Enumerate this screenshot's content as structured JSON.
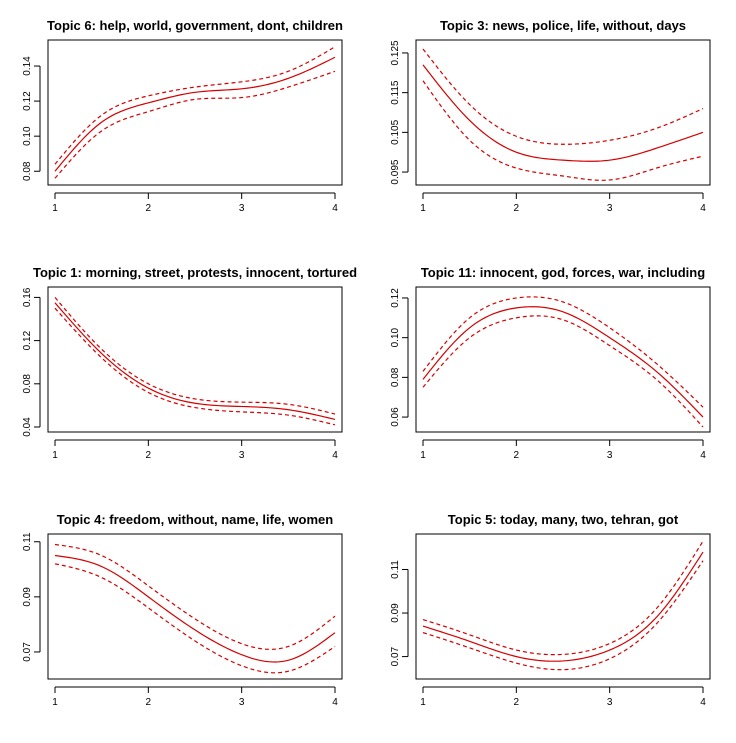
{
  "chart_data": [
    {
      "type": "line",
      "title": "Topic 6: help, world, government, dont, children",
      "x": [
        1,
        1.5,
        2,
        2.5,
        3,
        3.5,
        4
      ],
      "xticks": [
        1,
        2,
        3,
        4
      ],
      "xlim": [
        1,
        4
      ],
      "yticks": [
        0.08,
        0.1,
        0.12,
        0.14
      ],
      "yticklabels": [
        "0.08",
        "0.10",
        "0.12",
        "0.14"
      ],
      "ylim": [
        0.075,
        0.152
      ],
      "series": [
        {
          "role": "estimate",
          "values": [
            0.08,
            0.108,
            0.119,
            0.125,
            0.127,
            0.133,
            0.145
          ]
        },
        {
          "role": "upper",
          "values": [
            0.084,
            0.112,
            0.123,
            0.128,
            0.131,
            0.137,
            0.151
          ]
        },
        {
          "role": "lower",
          "values": [
            0.076,
            0.103,
            0.114,
            0.121,
            0.122,
            0.128,
            0.137
          ]
        }
      ],
      "color": "#d40000"
    },
    {
      "type": "line",
      "title": "Topic 3: news, police, life, without, days",
      "x": [
        1,
        1.5,
        2,
        2.5,
        3,
        3.5,
        4
      ],
      "xticks": [
        1,
        2,
        3,
        4
      ],
      "xlim": [
        1,
        4
      ],
      "yticks": [
        0.095,
        0.105,
        0.115,
        0.125
      ],
      "yticklabels": [
        "0.095",
        "0.105",
        "0.115",
        "0.125"
      ],
      "ylim": [
        0.093,
        0.127
      ],
      "series": [
        {
          "role": "estimate",
          "values": [
            0.122,
            0.108,
            0.1,
            0.098,
            0.098,
            0.101,
            0.105
          ]
        },
        {
          "role": "upper",
          "values": [
            0.126,
            0.112,
            0.104,
            0.102,
            0.103,
            0.106,
            0.111
          ]
        },
        {
          "role": "lower",
          "values": [
            0.118,
            0.103,
            0.096,
            0.094,
            0.093,
            0.096,
            0.099
          ]
        }
      ],
      "color": "#d40000"
    },
    {
      "type": "line",
      "title": "Topic 1: morning, street, protests, innocent, tortured",
      "x": [
        1,
        1.5,
        2,
        2.5,
        3,
        3.5,
        4
      ],
      "xticks": [
        1,
        2,
        3,
        4
      ],
      "xlim": [
        1,
        4
      ],
      "yticks": [
        0.04,
        0.08,
        0.12,
        0.16
      ],
      "yticklabels": [
        "0.04",
        "0.08",
        "0.12",
        "0.16"
      ],
      "ylim": [
        0.04,
        0.165
      ],
      "series": [
        {
          "role": "estimate",
          "values": [
            0.155,
            0.108,
            0.076,
            0.062,
            0.059,
            0.056,
            0.047
          ]
        },
        {
          "role": "upper",
          "values": [
            0.16,
            0.112,
            0.08,
            0.066,
            0.063,
            0.061,
            0.052
          ]
        },
        {
          "role": "lower",
          "values": [
            0.15,
            0.104,
            0.072,
            0.058,
            0.054,
            0.051,
            0.042
          ]
        }
      ],
      "color": "#d40000"
    },
    {
      "type": "line",
      "title": "Topic 11: innocent, god, forces, war, including",
      "x": [
        1,
        1.5,
        2,
        2.5,
        3,
        3.5,
        4
      ],
      "xticks": [
        1,
        2,
        3,
        4
      ],
      "xlim": [
        1,
        4
      ],
      "yticks": [
        0.06,
        0.08,
        0.1,
        0.12
      ],
      "yticklabels": [
        "0.06",
        "0.08",
        "0.10",
        "0.12"
      ],
      "ylim": [
        0.055,
        0.123
      ],
      "series": [
        {
          "role": "estimate",
          "values": [
            0.079,
            0.105,
            0.115,
            0.113,
            0.1,
            0.083,
            0.06
          ]
        },
        {
          "role": "upper",
          "values": [
            0.083,
            0.11,
            0.12,
            0.118,
            0.105,
            0.087,
            0.065
          ]
        },
        {
          "role": "lower",
          "values": [
            0.075,
            0.1,
            0.11,
            0.109,
            0.096,
            0.079,
            0.055
          ]
        }
      ],
      "color": "#d40000"
    },
    {
      "type": "line",
      "title": "Topic 4: freedom, without, name, life, women",
      "x": [
        1,
        1.5,
        2,
        2.5,
        3,
        3.5,
        4
      ],
      "xticks": [
        1,
        2,
        3,
        4
      ],
      "xlim": [
        1,
        4
      ],
      "yticks": [
        0.07,
        0.09,
        0.11
      ],
      "yticklabels": [
        "0.07",
        "0.09",
        "0.11"
      ],
      "ylim": [
        0.062,
        0.111
      ],
      "series": [
        {
          "role": "estimate",
          "values": [
            0.105,
            0.101,
            0.09,
            0.078,
            0.069,
            0.067,
            0.077
          ]
        },
        {
          "role": "upper",
          "values": [
            0.109,
            0.105,
            0.094,
            0.082,
            0.073,
            0.072,
            0.083
          ]
        },
        {
          "role": "lower",
          "values": [
            0.102,
            0.097,
            0.086,
            0.074,
            0.065,
            0.063,
            0.072
          ]
        }
      ],
      "color": "#d40000"
    },
    {
      "type": "line",
      "title": "Topic 5: today, many, two, tehran, got",
      "x": [
        1,
        1.5,
        2,
        2.5,
        3,
        3.5,
        4
      ],
      "xticks": [
        1,
        2,
        3,
        4
      ],
      "xlim": [
        1,
        4
      ],
      "yticks": [
        0.07,
        0.09,
        0.11
      ],
      "yticklabels": [
        "0.07",
        "0.09",
        "0.11"
      ],
      "ylim": [
        0.062,
        0.124
      ],
      "series": [
        {
          "role": "estimate",
          "values": [
            0.084,
            0.077,
            0.07,
            0.068,
            0.073,
            0.088,
            0.118
          ]
        },
        {
          "role": "upper",
          "values": [
            0.087,
            0.08,
            0.073,
            0.071,
            0.076,
            0.092,
            0.123
          ]
        },
        {
          "role": "lower",
          "values": [
            0.081,
            0.074,
            0.067,
            0.064,
            0.069,
            0.085,
            0.114
          ]
        }
      ],
      "color": "#d40000"
    }
  ]
}
